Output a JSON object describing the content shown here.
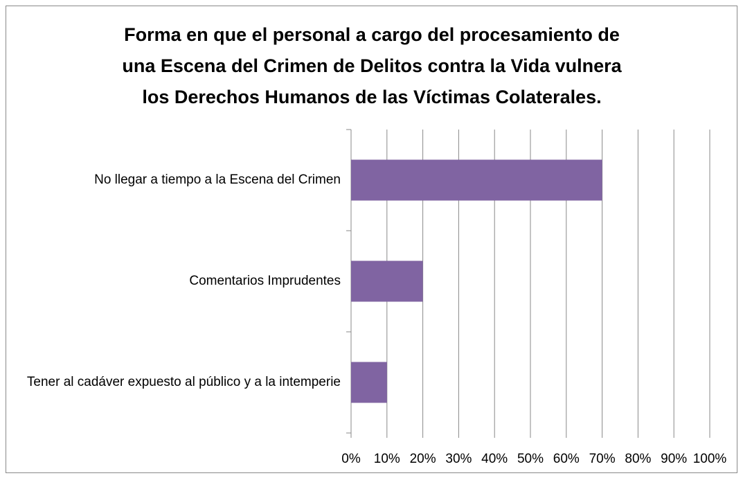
{
  "chart_data": {
    "type": "barh",
    "title": [
      "Forma en que el personal a cargo del procesamiento de",
      "una Escena del Crimen de Delitos contra la Vida vulnera",
      "los Derechos Humanos de las Víctimas Colaterales."
    ],
    "categories": [
      "No llegar a tiempo a la Escena del Crimen",
      "Comentarios Imprudentes",
      "Tener al cadáver expuesto al público y a la intemperie"
    ],
    "values": [
      70,
      20,
      10
    ],
    "color": "#8064a2",
    "xlim": [
      0,
      100
    ],
    "xticks": [
      {
        "value": 0,
        "label": "0%"
      },
      {
        "value": 10,
        "label": "10%"
      },
      {
        "value": 20,
        "label": "20%"
      },
      {
        "value": 30,
        "label": "30%"
      },
      {
        "value": 40,
        "label": "40%"
      },
      {
        "value": 50,
        "label": "50%"
      },
      {
        "value": 60,
        "label": "60%"
      },
      {
        "value": 70,
        "label": "70%"
      },
      {
        "value": 80,
        "label": "80%"
      },
      {
        "value": 90,
        "label": "90%"
      },
      {
        "value": 100,
        "label": "100%"
      }
    ],
    "grid": true
  }
}
